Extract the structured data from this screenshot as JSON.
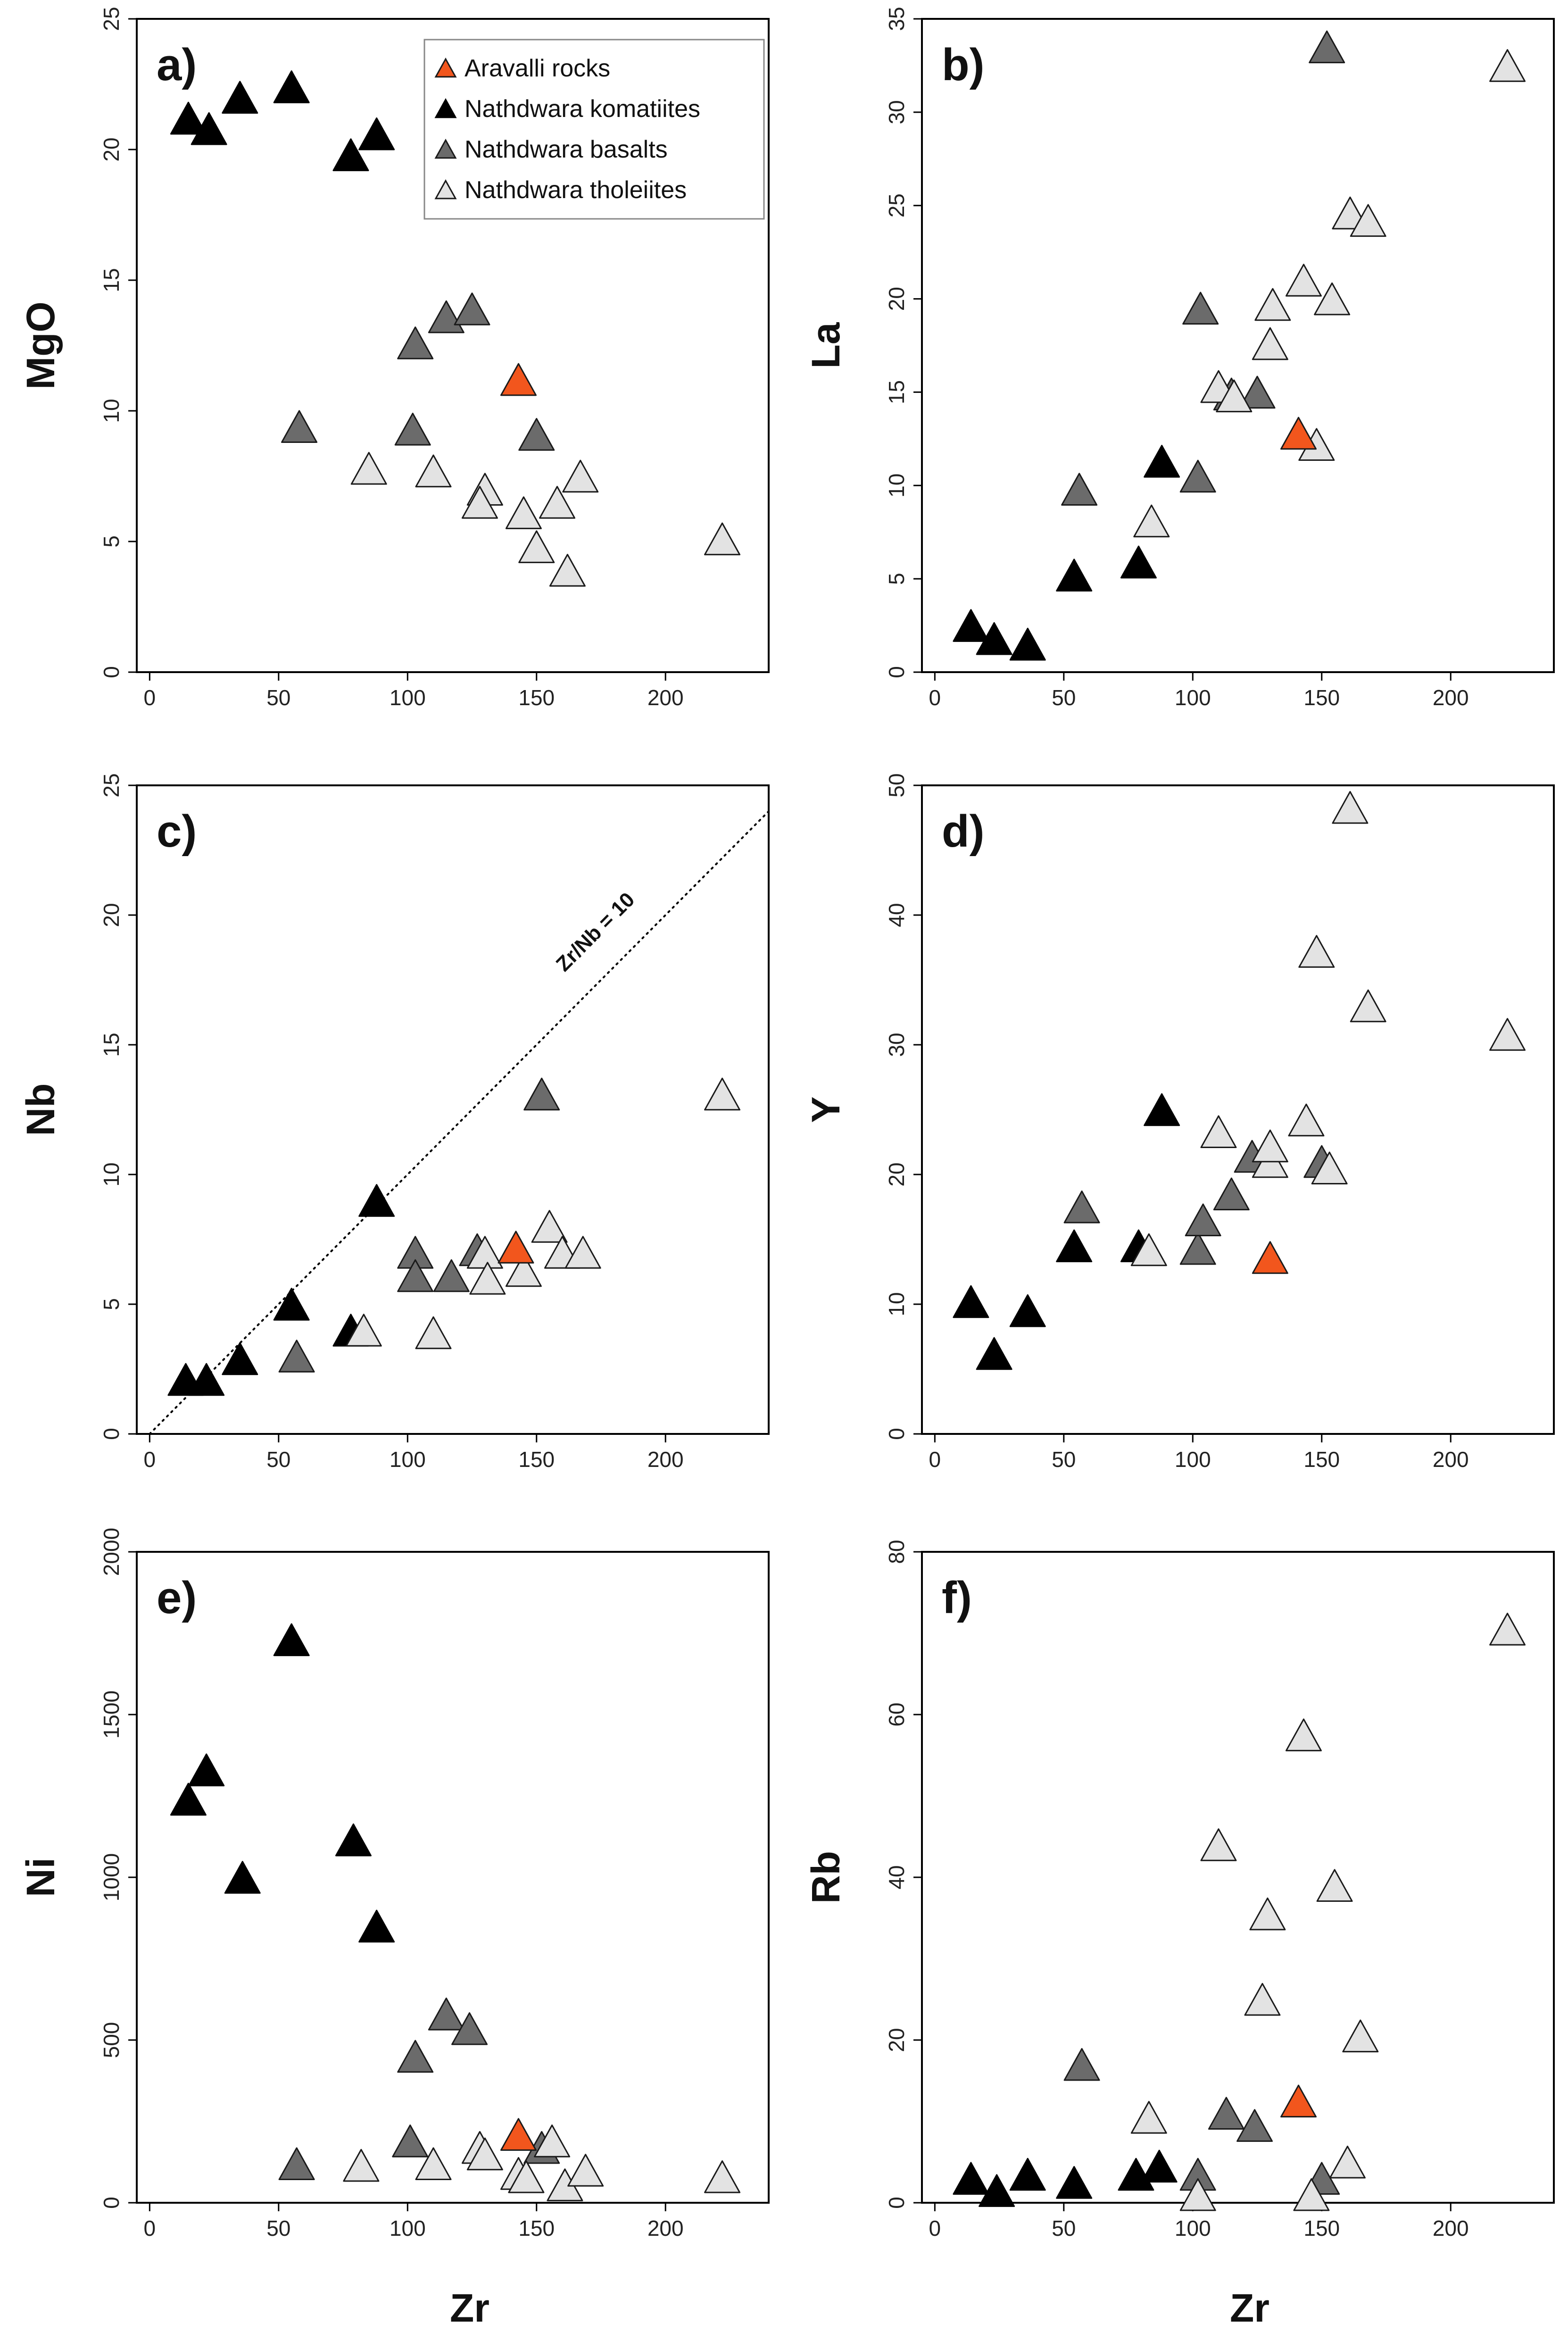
{
  "figure": {
    "xlabel": "Zr"
  },
  "colors": {
    "aravalli": "#f2561d",
    "komatiites": "#000000",
    "basalts": "#6b6b6b",
    "tholeiites": "#e3e3e3"
  },
  "chart_data": [
    {
      "type": "scatter",
      "panel": "a)",
      "xlabel": "Zr",
      "ylabel": "MgO",
      "xlim": [
        -5,
        240
      ],
      "ylim": [
        0,
        25
      ],
      "xticks": [
        0,
        50,
        100,
        150,
        200
      ],
      "yticks": [
        0,
        5,
        10,
        15,
        20,
        25
      ],
      "legend": {
        "position": "top-right",
        "entries": [
          {
            "label": "Aravalli rocks",
            "group": "aravalli"
          },
          {
            "label": "Nathdwara komatiites",
            "group": "komatiites"
          },
          {
            "label": "Nathdwara basalts",
            "group": "basalts"
          },
          {
            "label": "Nathdwara tholeiites",
            "group": "tholeiites"
          }
        ]
      },
      "series": [
        {
          "name": "Aravalli rocks",
          "group": "aravalli",
          "points": [
            [
              143,
              11.2
            ]
          ]
        },
        {
          "name": "Nathdwara komatiites",
          "group": "komatiites",
          "points": [
            [
              15,
              21.2
            ],
            [
              23,
              20.8
            ],
            [
              35,
              22
            ],
            [
              55,
              22.4
            ],
            [
              78,
              19.8
            ],
            [
              88,
              20.6
            ]
          ]
        },
        {
          "name": "Nathdwara basalts",
          "group": "basalts",
          "points": [
            [
              58,
              9.4
            ],
            [
              102,
              9.3
            ],
            [
              103,
              12.6
            ],
            [
              115,
              13.6
            ],
            [
              125,
              13.9
            ],
            [
              150,
              9.1
            ]
          ]
        },
        {
          "name": "Nathdwara tholeiites",
          "group": "tholeiites",
          "points": [
            [
              85,
              7.8
            ],
            [
              110,
              7.7
            ],
            [
              130,
              7
            ],
            [
              128,
              6.5
            ],
            [
              145,
              6.1
            ],
            [
              150,
              4.8
            ],
            [
              158,
              6.5
            ],
            [
              162,
              3.9
            ],
            [
              167,
              7.5
            ],
            [
              222,
              5.1
            ]
          ]
        }
      ]
    },
    {
      "type": "scatter",
      "panel": "b)",
      "xlabel": "Zr",
      "ylabel": "La",
      "xlim": [
        -5,
        240
      ],
      "ylim": [
        0,
        35
      ],
      "xticks": [
        0,
        50,
        100,
        150,
        200
      ],
      "yticks": [
        0,
        5,
        10,
        15,
        20,
        25,
        30,
        35
      ],
      "series": [
        {
          "name": "Aravalli rocks",
          "group": "aravalli",
          "points": [
            [
              141,
              12.8
            ]
          ]
        },
        {
          "name": "Nathdwara komatiites",
          "group": "komatiites",
          "points": [
            [
              14,
              2.5
            ],
            [
              23,
              1.8
            ],
            [
              36,
              1.5
            ],
            [
              54,
              5.2
            ],
            [
              79,
              5.9
            ],
            [
              88,
              11.3
            ]
          ]
        },
        {
          "name": "Nathdwara basalts",
          "group": "basalts",
          "points": [
            [
              56,
              9.8
            ],
            [
              102,
              10.5
            ],
            [
              103,
              19.5
            ],
            [
              115,
              14.9
            ],
            [
              125,
              15
            ],
            [
              152,
              33.5
            ]
          ]
        },
        {
          "name": "Nathdwara tholeiites",
          "group": "tholeiites",
          "points": [
            [
              84,
              8.1
            ],
            [
              110,
              15.3
            ],
            [
              116,
              14.8
            ],
            [
              130,
              17.6
            ],
            [
              131,
              19.7
            ],
            [
              143,
              21
            ],
            [
              148,
              12.2
            ],
            [
              154,
              20
            ],
            [
              161,
              24.6
            ],
            [
              168,
              24.2
            ],
            [
              222,
              32.5
            ]
          ]
        }
      ]
    },
    {
      "type": "scatter",
      "panel": "c)",
      "xlabel": "Zr",
      "ylabel": "Nb",
      "xlim": [
        -5,
        240
      ],
      "ylim": [
        0,
        25
      ],
      "xticks": [
        0,
        50,
        100,
        150,
        200
      ],
      "yticks": [
        0,
        5,
        10,
        15,
        20,
        25
      ],
      "reference_line": {
        "label": "Zr/Nb = 10",
        "slope": 0.1,
        "style": "dotted"
      },
      "series": [
        {
          "name": "Aravalli rocks",
          "group": "aravalli",
          "points": [
            [
              142,
              7.2
            ]
          ]
        },
        {
          "name": "Nathdwara komatiites",
          "group": "komatiites",
          "points": [
            [
              14,
              2.1
            ],
            [
              22,
              2.1
            ],
            [
              35,
              2.9
            ],
            [
              55,
              5
            ],
            [
              78,
              4
            ],
            [
              88,
              9
            ]
          ]
        },
        {
          "name": "Nathdwara basalts",
          "group": "basalts",
          "points": [
            [
              57,
              3
            ],
            [
              103,
              7
            ],
            [
              103,
              6.1
            ],
            [
              117,
              6.1
            ],
            [
              127,
              7.1
            ],
            [
              152,
              13.1
            ]
          ]
        },
        {
          "name": "Nathdwara tholeiites",
          "group": "tholeiites",
          "points": [
            [
              83,
              4
            ],
            [
              110,
              3.9
            ],
            [
              130,
              7
            ],
            [
              131,
              6
            ],
            [
              145,
              6.3
            ],
            [
              155,
              8
            ],
            [
              160,
              7
            ],
            [
              168,
              7
            ],
            [
              222,
              13.1
            ]
          ]
        }
      ]
    },
    {
      "type": "scatter",
      "panel": "d)",
      "xlabel": "Zr",
      "ylabel": "Y",
      "xlim": [
        -5,
        240
      ],
      "ylim": [
        0,
        50
      ],
      "xticks": [
        0,
        50,
        100,
        150,
        200
      ],
      "yticks": [
        0,
        10,
        20,
        30,
        40,
        50
      ],
      "series": [
        {
          "name": "Aravalli rocks",
          "group": "aravalli",
          "points": [
            [
              130,
              13.6
            ]
          ]
        },
        {
          "name": "Nathdwara komatiites",
          "group": "komatiites",
          "points": [
            [
              14,
              10.2
            ],
            [
              23,
              6.2
            ],
            [
              36,
              9.5
            ],
            [
              54,
              14.5
            ],
            [
              79,
              14.5
            ],
            [
              88,
              25
            ]
          ]
        },
        {
          "name": "Nathdwara basalts",
          "group": "basalts",
          "points": [
            [
              57,
              17.5
            ],
            [
              102,
              14.3
            ],
            [
              104,
              16.5
            ],
            [
              115,
              18.5
            ],
            [
              123,
              21.4
            ],
            [
              150,
              21
            ]
          ]
        },
        {
          "name": "Nathdwara tholeiites",
          "group": "tholeiites",
          "points": [
            [
              83,
              14.2
            ],
            [
              110,
              23.3
            ],
            [
              130,
              21
            ],
            [
              130,
              22.2
            ],
            [
              144,
              24.2
            ],
            [
              148,
              37.2
            ],
            [
              153,
              20.5
            ],
            [
              161,
              48.3
            ],
            [
              168,
              33
            ],
            [
              222,
              30.8
            ]
          ]
        }
      ]
    },
    {
      "type": "scatter",
      "panel": "e)",
      "xlabel": "Zr",
      "ylabel": "Ni",
      "xlim": [
        -5,
        240
      ],
      "ylim": [
        0,
        2000
      ],
      "xticks": [
        0,
        50,
        100,
        150,
        200
      ],
      "yticks": [
        0,
        500,
        1000,
        1500,
        2000
      ],
      "series": [
        {
          "name": "Aravalli rocks",
          "group": "aravalli",
          "points": [
            [
              143,
              210
            ]
          ]
        },
        {
          "name": "Nathdwara komatiites",
          "group": "komatiites",
          "points": [
            [
              15,
              1240
            ],
            [
              22,
              1330
            ],
            [
              36,
              1000
            ],
            [
              55,
              1730
            ],
            [
              79,
              1115
            ],
            [
              88,
              850
            ]
          ]
        },
        {
          "name": "Nathdwara basalts",
          "group": "basalts",
          "points": [
            [
              57,
              120
            ],
            [
              101,
              190
            ],
            [
              103,
              450
            ],
            [
              115,
              580
            ],
            [
              124,
              535
            ],
            [
              152,
              170
            ]
          ]
        },
        {
          "name": "Nathdwara tholeiites",
          "group": "tholeiites",
          "points": [
            [
              82,
              115
            ],
            [
              110,
              120
            ],
            [
              128,
              170
            ],
            [
              130,
              150
            ],
            [
              143,
              90
            ],
            [
              146,
              80
            ],
            [
              156,
              190
            ],
            [
              161,
              55
            ],
            [
              169,
              100
            ],
            [
              222,
              80
            ]
          ]
        }
      ]
    },
    {
      "type": "scatter",
      "panel": "f)",
      "xlabel": "Zr",
      "ylabel": "Rb",
      "xlim": [
        -5,
        240
      ],
      "ylim": [
        0,
        80
      ],
      "xticks": [
        0,
        50,
        100,
        150,
        200
      ],
      "yticks": [
        0,
        20,
        40,
        60,
        80
      ],
      "series": [
        {
          "name": "Aravalli rocks",
          "group": "aravalli",
          "points": [
            [
              141,
              12.5
            ]
          ]
        },
        {
          "name": "Nathdwara komatiites",
          "group": "komatiites",
          "points": [
            [
              14,
              3
            ],
            [
              24,
              1.5
            ],
            [
              36,
              3.5
            ],
            [
              54,
              2.5
            ],
            [
              78,
              3.5
            ],
            [
              87,
              4.5
            ]
          ]
        },
        {
          "name": "Nathdwara basalts",
          "group": "basalts",
          "points": [
            [
              57,
              17
            ],
            [
              102,
              3.5
            ],
            [
              113,
              11
            ],
            [
              124,
              9.5
            ],
            [
              150,
              3
            ]
          ]
        },
        {
          "name": "Nathdwara tholeiites",
          "group": "tholeiites",
          "points": [
            [
              83,
              10.5
            ],
            [
              102,
              1
            ],
            [
              110,
              44
            ],
            [
              129,
              35.5
            ],
            [
              127,
              25
            ],
            [
              143,
              57.5
            ],
            [
              146,
              1
            ],
            [
              155,
              39
            ],
            [
              160,
              5
            ],
            [
              165,
              20.5
            ],
            [
              222,
              70.5
            ]
          ]
        }
      ]
    }
  ]
}
